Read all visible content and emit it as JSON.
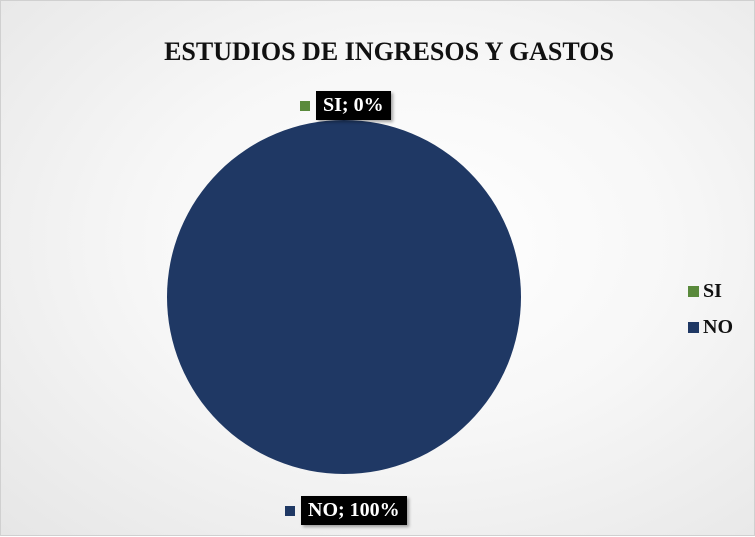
{
  "chart_data": {
    "type": "pie",
    "title": "ESTUDIOS DE INGRESOS Y GASTOS",
    "categories": [
      "SI",
      "NO"
    ],
    "values": [
      0,
      100
    ],
    "data_labels": [
      "SI; 0%",
      "NO; 100%"
    ],
    "colors": [
      "#5a8a3c",
      "#1f3864"
    ],
    "legend": "right"
  }
}
